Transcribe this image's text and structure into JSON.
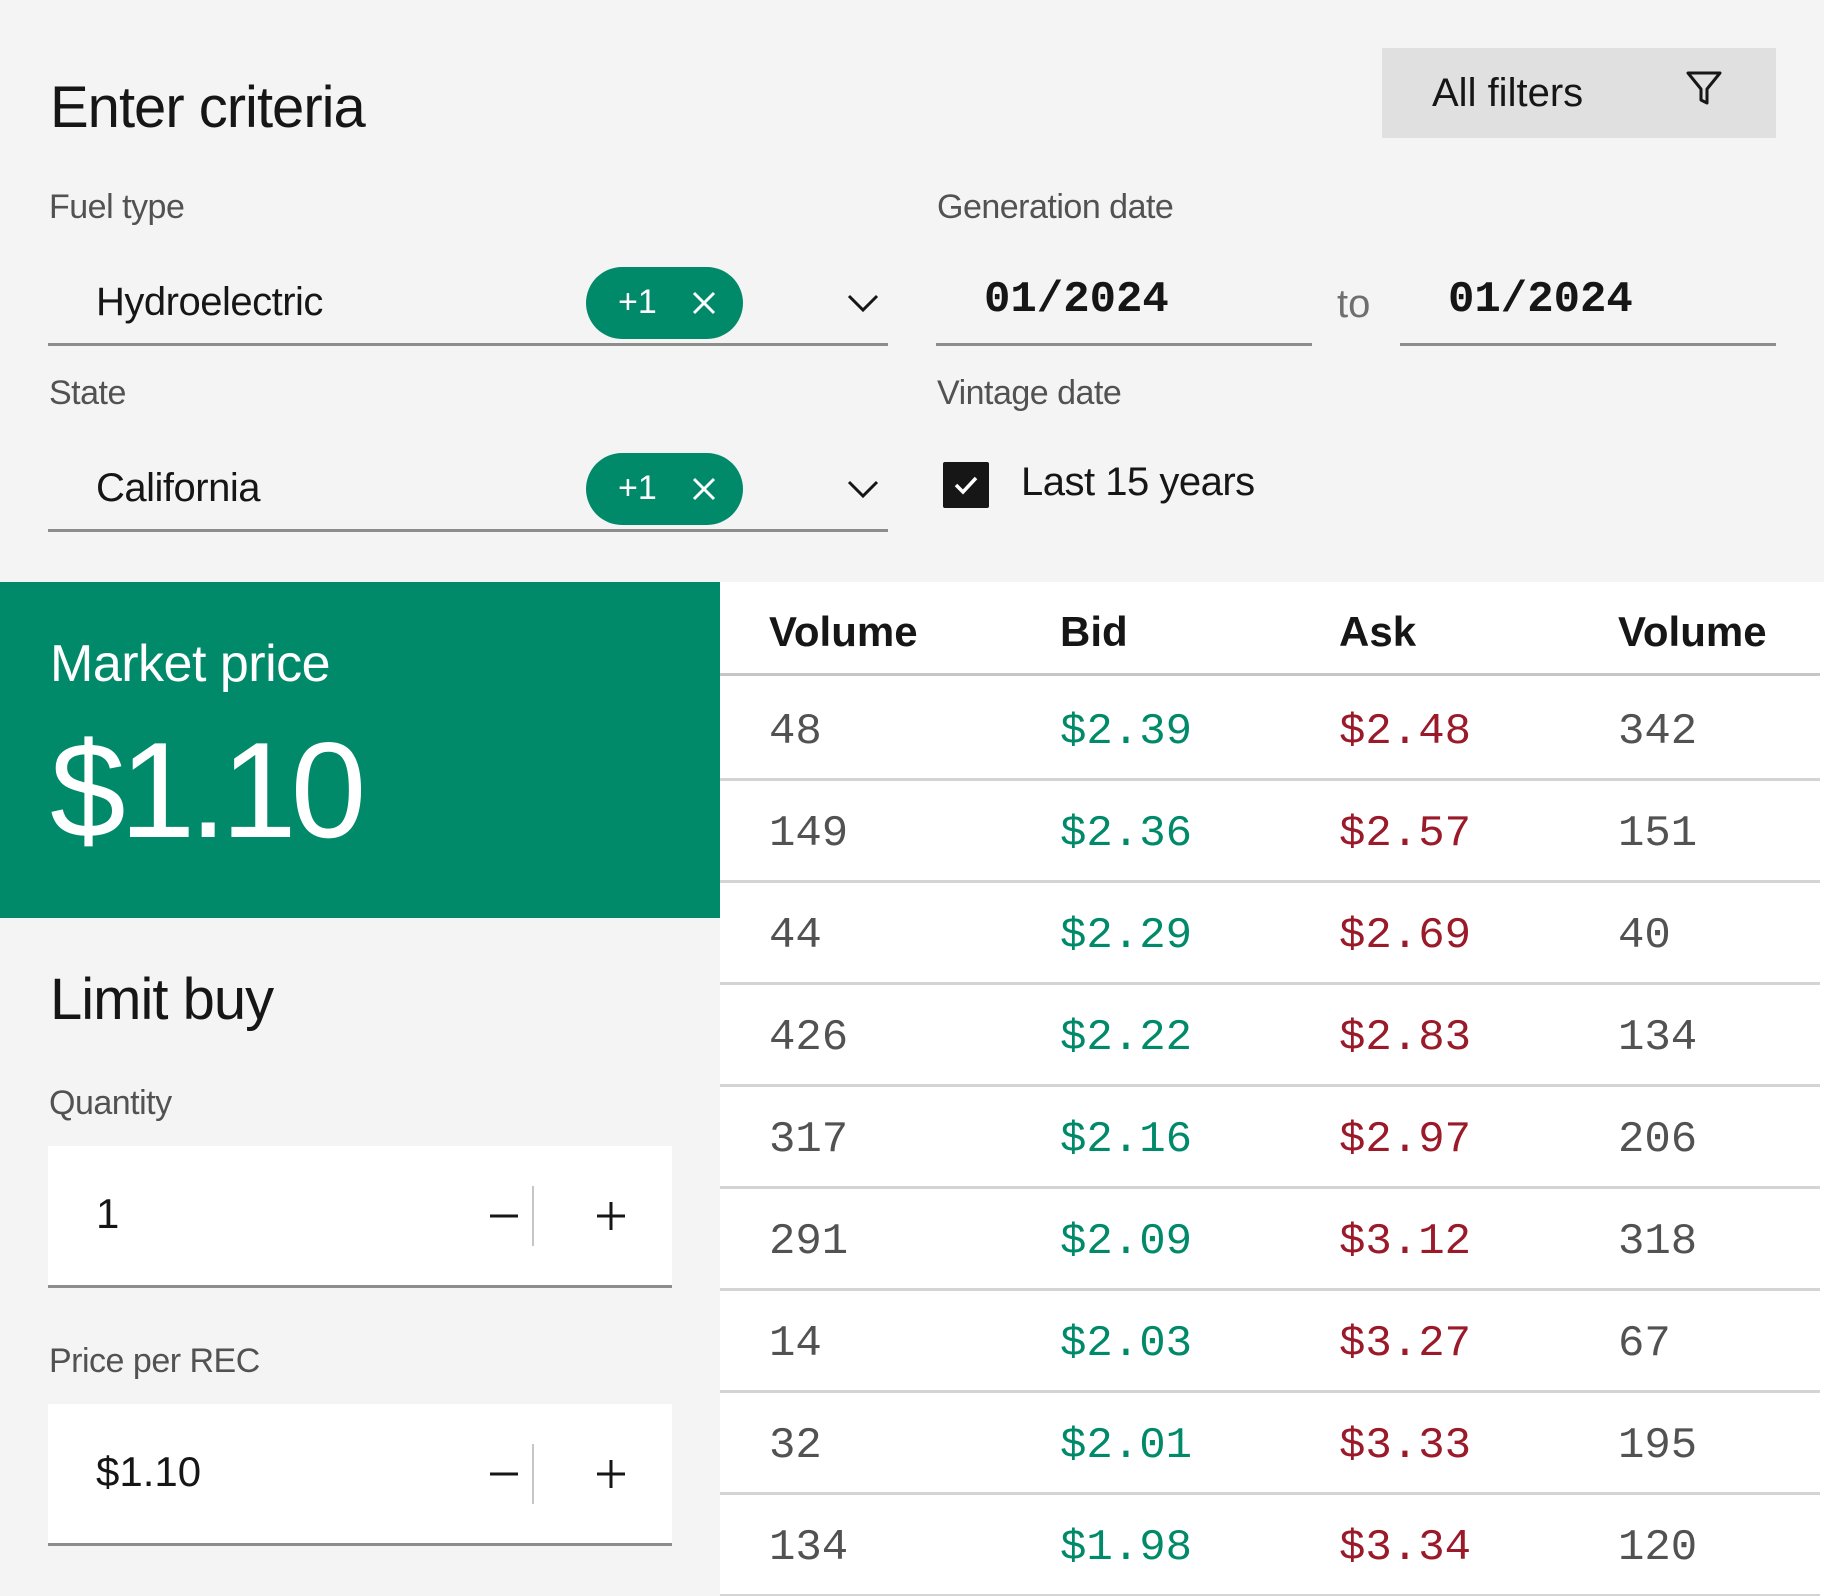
{
  "header": {
    "title": "Enter criteria",
    "filters_label": "All filters"
  },
  "fuel_type": {
    "label": "Fuel type",
    "value": "Hydroelectric",
    "tag": "+1"
  },
  "state": {
    "label": "State",
    "value": "California",
    "tag": "+1"
  },
  "generation_date": {
    "label": "Generation date",
    "from": "01/2024",
    "to_label": "to",
    "to": "01/2024"
  },
  "vintage_date": {
    "label": "Vintage date",
    "checkbox_label": "Last 15 years",
    "checked": true
  },
  "market_price": {
    "label": "Market price",
    "value": "$1.10"
  },
  "limit_buy": {
    "title": "Limit buy",
    "quantity_label": "Quantity",
    "quantity_value": "1",
    "price_label": "Price per REC",
    "price_value": "$1.10",
    "decrement": "–",
    "increment": "+"
  },
  "order_book": {
    "columns": [
      "Volume",
      "Bid",
      "Ask",
      "Volume"
    ],
    "rows": [
      {
        "bid_volume": "48",
        "bid": "$2.39",
        "ask": "$2.48",
        "ask_volume": "342"
      },
      {
        "bid_volume": "149",
        "bid": "$2.36",
        "ask": "$2.57",
        "ask_volume": "151"
      },
      {
        "bid_volume": "44",
        "bid": "$2.29",
        "ask": "$2.69",
        "ask_volume": "40"
      },
      {
        "bid_volume": "426",
        "bid": "$2.22",
        "ask": "$2.83",
        "ask_volume": "134"
      },
      {
        "bid_volume": "317",
        "bid": "$2.16",
        "ask": "$2.97",
        "ask_volume": "206"
      },
      {
        "bid_volume": "291",
        "bid": "$2.09",
        "ask": "$3.12",
        "ask_volume": "318"
      },
      {
        "bid_volume": "14",
        "bid": "$2.03",
        "ask": "$3.27",
        "ask_volume": "67"
      },
      {
        "bid_volume": "32",
        "bid": "$2.01",
        "ask": "$3.33",
        "ask_volume": "195"
      },
      {
        "bid_volume": "134",
        "bid": "$1.98",
        "ask": "$3.34",
        "ask_volume": "120"
      }
    ]
  },
  "colors": {
    "accent": "#018a6a",
    "ask": "#9a1a2a",
    "background": "#f4f4f4"
  },
  "icons": [
    "filter-icon",
    "close-icon",
    "chevron-down-icon",
    "checkmark-icon"
  ]
}
